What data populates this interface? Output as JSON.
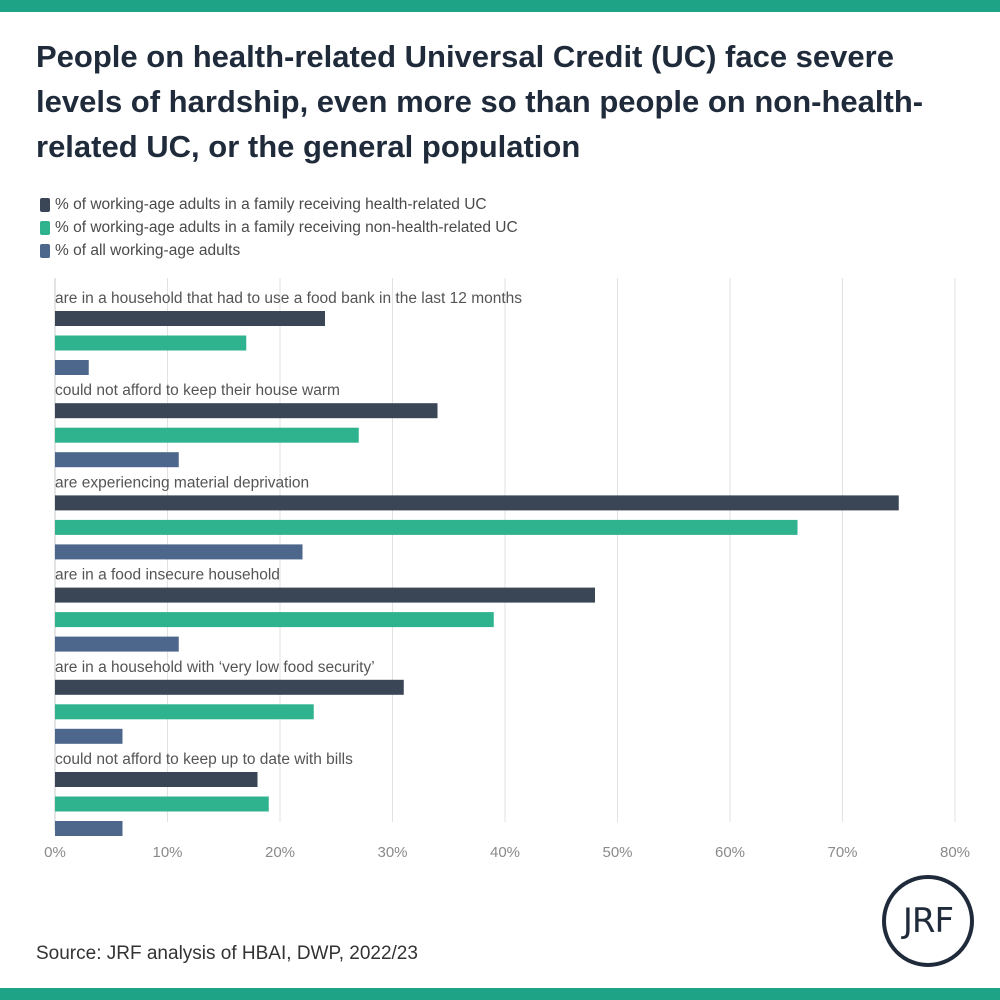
{
  "title": "People on health-related Universal Credit (UC) face severe levels of hardship, even more so than people on non-health-related UC, or the general population",
  "source": "Source: JRF analysis of HBAI, DWP, 2022/23",
  "logo_text": "JRF",
  "colors": {
    "band": "#1fa386",
    "grid": "#e2e2e2",
    "axis": "#c8c8c8",
    "text": "#555555"
  },
  "chart_data": {
    "type": "bar",
    "orientation": "horizontal",
    "categories": [
      "are in a household that had to use a food bank in the last 12 months",
      "could not afford to keep their house warm",
      "are experiencing material deprivation",
      "are in a food insecure household",
      "are in a household with ‘very low food security’",
      "could not afford to keep up to date with bills"
    ],
    "series": [
      {
        "name": "% of working-age adults in a family receiving health-related UC",
        "color": "#3a4556",
        "values": [
          24,
          34,
          75,
          48,
          31,
          18
        ]
      },
      {
        "name": "% of working-age adults in a family receiving non-health-related UC",
        "color": "#2fb38e",
        "values": [
          17,
          27,
          66,
          39,
          23,
          19
        ]
      },
      {
        "name": "% of all working-age adults",
        "color": "#4d668c",
        "values": [
          3,
          11,
          22,
          11,
          6,
          6
        ]
      }
    ],
    "xlim": [
      0,
      80
    ],
    "xticks": [
      "0%",
      "10%",
      "20%",
      "30%",
      "40%",
      "50%",
      "60%",
      "70%",
      "80%"
    ],
    "grid": true,
    "legend_position": "top-left"
  }
}
